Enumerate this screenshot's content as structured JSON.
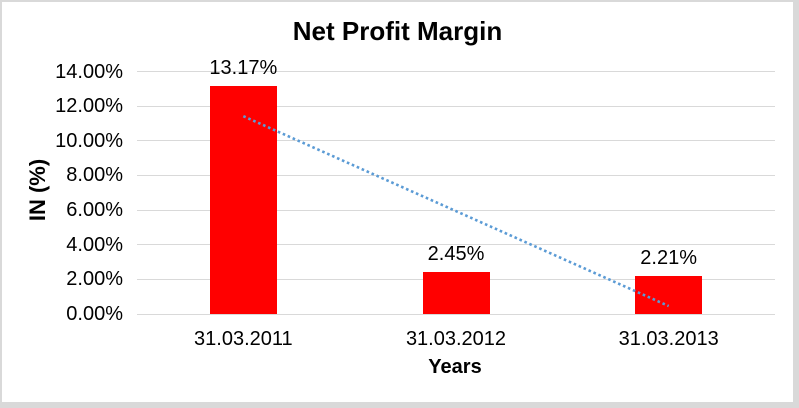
{
  "chart_data": {
    "type": "bar",
    "title": "Net Profit Margin",
    "xlabel": "Years",
    "ylabel": "IN (%)",
    "categories": [
      "31.03.2011",
      "31.03.2012",
      "31.03.2013"
    ],
    "values": [
      13.17,
      2.45,
      2.21
    ],
    "value_labels": [
      "13.17%",
      "2.45%",
      "2.21%"
    ],
    "ylim": [
      0,
      14
    ],
    "y_tick_interval": 2,
    "y_tick_labels": [
      "0.00%",
      "2.00%",
      "4.00%",
      "6.00%",
      "8.00%",
      "10.00%",
      "12.00%",
      "14.00%"
    ],
    "grid": true,
    "legend": "none",
    "colors": {
      "bar": "#FF0000",
      "trendline": "#5B9BD5",
      "gridline": "#D9D9D9",
      "text": "#000000",
      "background": "#FFFFFF",
      "border": "#D9D9D9"
    },
    "trendline": {
      "type": "linear",
      "style": "dotted",
      "start": {
        "category_index": 0,
        "value": 11.42
      },
      "end": {
        "category_index": 2,
        "value": 0.46
      }
    }
  }
}
